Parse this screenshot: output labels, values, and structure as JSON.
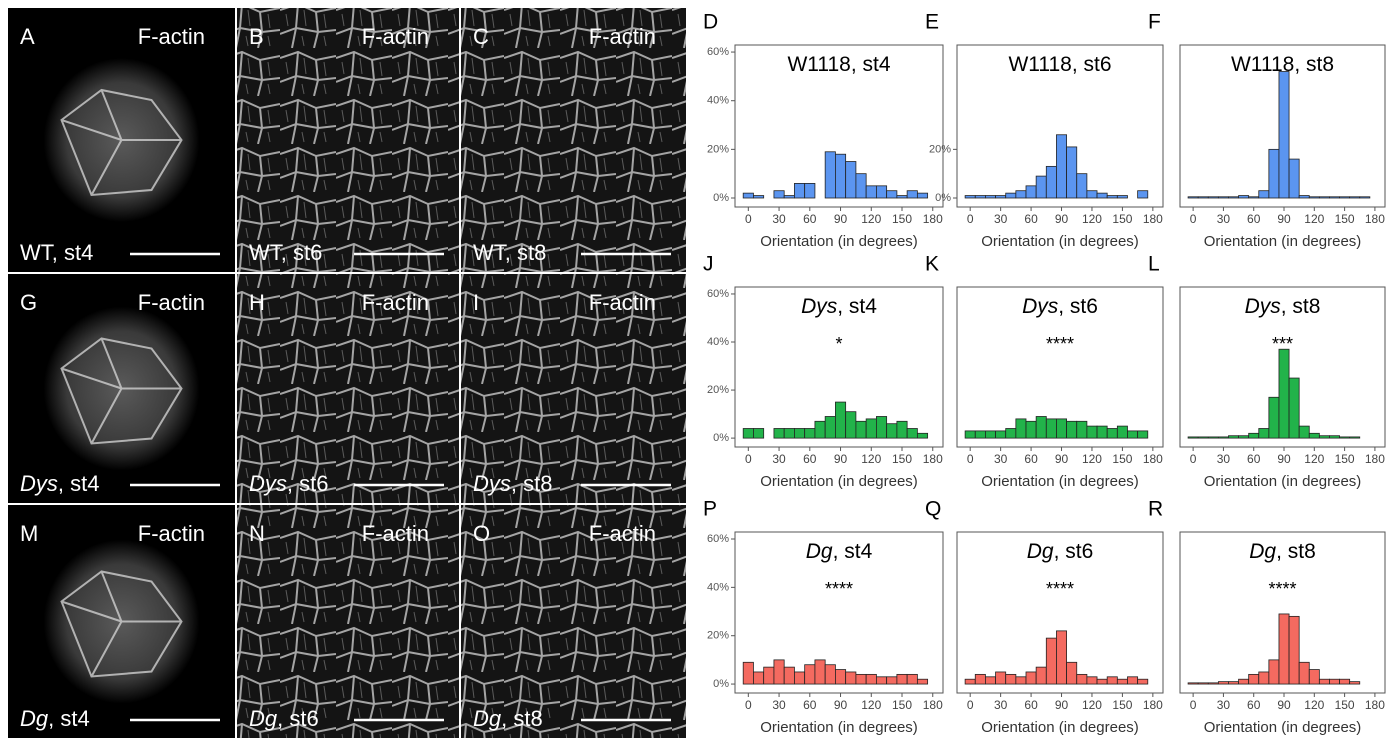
{
  "images": [
    {
      "letter": "A",
      "stain": "F-actin",
      "genotype": "WT",
      "stage": ", st4",
      "italic": false
    },
    {
      "letter": "B",
      "stain": "F-actin",
      "genotype": "WT",
      "stage": ", st6",
      "italic": false
    },
    {
      "letter": "C",
      "stain": "F-actin",
      "genotype": "WT",
      "stage": ", st8",
      "italic": false
    },
    {
      "letter": "G",
      "stain": "F-actin",
      "genotype": "Dys",
      "stage": ", st4",
      "italic": true
    },
    {
      "letter": "H",
      "stain": "F-actin",
      "genotype": "Dys",
      "stage": ", st6",
      "italic": true
    },
    {
      "letter": "I",
      "stain": "F-actin",
      "genotype": "Dys",
      "stage": ", st8",
      "italic": true
    },
    {
      "letter": "M",
      "stain": "F-actin",
      "genotype": "Dg",
      "stage": ", st4",
      "italic": true
    },
    {
      "letter": "N",
      "stain": "F-actin",
      "genotype": "Dg",
      "stage": ", st6",
      "italic": true
    },
    {
      "letter": "O",
      "stain": "F-actin",
      "genotype": "Dg",
      "stage": ", st8",
      "italic": true
    }
  ],
  "chart_data": [
    {
      "type": "histogram",
      "panel": "D",
      "title": {
        "genotype": "W1118",
        "stage": ", st4",
        "italic": false
      },
      "color": "#5b95f0",
      "bins": [
        -5,
        5,
        15,
        25,
        35,
        45,
        55,
        65,
        75,
        85,
        95,
        105,
        115,
        125,
        135,
        145,
        155,
        165,
        175
      ],
      "values": [
        2,
        1,
        0,
        3,
        1,
        6,
        6,
        0,
        19,
        18,
        15,
        10,
        5,
        5,
        3,
        1,
        3,
        2
      ],
      "xlim": [
        -13,
        190
      ],
      "xticks": [
        0,
        30,
        60,
        90,
        120,
        150,
        180
      ],
      "xlabel": "Orientation (in degrees)",
      "ylim": [
        -3.7,
        62.9
      ],
      "yticks": [
        {
          "value": 0,
          "label": "0%"
        },
        {
          "value": 20,
          "label": "20%"
        },
        {
          "value": 40,
          "label": "40%"
        },
        {
          "value": 60,
          "label": "60%"
        }
      ]
    },
    {
      "type": "histogram",
      "panel": "E",
      "title": {
        "genotype": "W1118",
        "stage": ", st6",
        "italic": false
      },
      "color": "#5b95f0",
      "bins": [
        -5,
        5,
        15,
        25,
        35,
        45,
        55,
        65,
        75,
        85,
        95,
        105,
        115,
        125,
        135,
        145,
        155,
        165,
        175
      ],
      "values": [
        1,
        1,
        1,
        1,
        2,
        3,
        5,
        9,
        13,
        26,
        21,
        10,
        3,
        2,
        1,
        1,
        0,
        3
      ],
      "xlim": [
        -13,
        190
      ],
      "xticks": [
        0,
        30,
        60,
        90,
        120,
        150,
        180
      ],
      "xlabel": "Orientation (in degrees)",
      "ylim": [
        -3.7,
        62.9
      ],
      "yticks": [
        {
          "value": 0,
          "label": "0%"
        },
        {
          "value": 20,
          "label": "20%"
        }
      ]
    },
    {
      "type": "histogram",
      "panel": "F",
      "title": {
        "genotype": "W1118",
        "stage": ", st8",
        "italic": false
      },
      "color": "#5b95f0",
      "bins": [
        -5,
        5,
        15,
        25,
        35,
        45,
        55,
        65,
        75,
        85,
        95,
        105,
        115,
        125,
        135,
        145,
        155,
        165,
        175
      ],
      "values": [
        0.5,
        0.5,
        0.5,
        0.5,
        0.5,
        1,
        0.5,
        3,
        20,
        52,
        16,
        1,
        0.5,
        0.5,
        0.5,
        0.5,
        0.5,
        0.5
      ],
      "xlim": [
        -13,
        190
      ],
      "xticks": [
        0,
        30,
        60,
        90,
        120,
        150,
        180
      ],
      "xlabel": "Orientation (in degrees)",
      "ylim": [
        -3.7,
        62.9
      ]
    },
    {
      "type": "histogram",
      "panel": "J",
      "title": {
        "genotype": "Dys",
        "stage": ", st4",
        "italic": true
      },
      "annotation": "*",
      "color": "#22b34a",
      "bins": [
        -5,
        5,
        15,
        25,
        35,
        45,
        55,
        65,
        75,
        85,
        95,
        105,
        115,
        125,
        135,
        145,
        155,
        165,
        175
      ],
      "values": [
        4,
        4,
        0,
        4,
        4,
        4,
        4,
        7,
        9,
        15,
        11,
        7,
        8,
        9,
        6,
        7,
        4,
        2
      ],
      "xlim": [
        -13,
        190
      ],
      "xticks": [
        0,
        30,
        60,
        90,
        120,
        150,
        180
      ],
      "xlabel": "Orientation (in degrees)",
      "ylim": [
        -3.7,
        62.9
      ],
      "yticks": [
        {
          "value": 0,
          "label": "0%"
        },
        {
          "value": 20,
          "label": "20%"
        },
        {
          "value": 40,
          "label": "40%"
        },
        {
          "value": 60,
          "label": "60%"
        }
      ]
    },
    {
      "type": "histogram",
      "panel": "K",
      "title": {
        "genotype": "Dys",
        "stage": ", st6",
        "italic": true
      },
      "annotation": "****",
      "color": "#22b34a",
      "bins": [
        -5,
        5,
        15,
        25,
        35,
        45,
        55,
        65,
        75,
        85,
        95,
        105,
        115,
        125,
        135,
        145,
        155,
        165,
        175
      ],
      "values": [
        3,
        3,
        3,
        3,
        4,
        8,
        7,
        9,
        8,
        8,
        7,
        7,
        5,
        5,
        4,
        5,
        3,
        3
      ],
      "xlim": [
        -13,
        190
      ],
      "xticks": [
        0,
        30,
        60,
        90,
        120,
        150,
        180
      ],
      "xlabel": "Orientation (in degrees)",
      "ylim": [
        -3.7,
        62.9
      ]
    },
    {
      "type": "histogram",
      "panel": "L",
      "title": {
        "genotype": "Dys",
        "stage": ", st8",
        "italic": true
      },
      "annotation": "***",
      "color": "#22b34a",
      "bins": [
        -5,
        5,
        15,
        25,
        35,
        45,
        55,
        65,
        75,
        85,
        95,
        105,
        115,
        125,
        135,
        145,
        155,
        165,
        175
      ],
      "values": [
        0.5,
        0.5,
        0.5,
        0.5,
        1,
        1,
        2,
        4,
        17,
        37,
        25,
        5,
        2,
        1,
        1,
        0.5,
        0.5,
        0
      ],
      "xlim": [
        -13,
        190
      ],
      "xticks": [
        0,
        30,
        60,
        90,
        120,
        150,
        180
      ],
      "xlabel": "Orientation (in degrees)",
      "ylim": [
        -3.7,
        62.9
      ]
    },
    {
      "type": "histogram",
      "panel": "P",
      "title": {
        "genotype": "Dg",
        "stage": ", st4",
        "italic": true
      },
      "annotation": "****",
      "color": "#f46a60",
      "bins": [
        -5,
        5,
        15,
        25,
        35,
        45,
        55,
        65,
        75,
        85,
        95,
        105,
        115,
        125,
        135,
        145,
        155,
        165,
        175
      ],
      "values": [
        9,
        5,
        7,
        10,
        7,
        5,
        8,
        10,
        8,
        6,
        5,
        4,
        4,
        3,
        3,
        4,
        4,
        2
      ],
      "xlim": [
        -13,
        190
      ],
      "xticks": [
        0,
        30,
        60,
        90,
        120,
        150,
        180
      ],
      "xlabel": "Orientation (in degrees)",
      "ylim": [
        -3.7,
        62.9
      ],
      "yticks": [
        {
          "value": 0,
          "label": "0%"
        },
        {
          "value": 20,
          "label": "20%"
        },
        {
          "value": 40,
          "label": "40%"
        },
        {
          "value": 60,
          "label": "60%"
        }
      ]
    },
    {
      "type": "histogram",
      "panel": "Q",
      "title": {
        "genotype": "Dg",
        "stage": ", st6",
        "italic": true
      },
      "annotation": "****",
      "color": "#f46a60",
      "bins": [
        -5,
        5,
        15,
        25,
        35,
        45,
        55,
        65,
        75,
        85,
        95,
        105,
        115,
        125,
        135,
        145,
        155,
        165,
        175
      ],
      "values": [
        2,
        4,
        3,
        5,
        4,
        3,
        5,
        7,
        19,
        22,
        9,
        4,
        3,
        2,
        3,
        2,
        3,
        2
      ],
      "xlim": [
        -13,
        190
      ],
      "xticks": [
        0,
        30,
        60,
        90,
        120,
        150,
        180
      ],
      "xlabel": "Orientation (in degrees)",
      "ylim": [
        -3.7,
        62.9
      ]
    },
    {
      "type": "histogram",
      "panel": "R",
      "title": {
        "genotype": "Dg",
        "stage": ", st8",
        "italic": true
      },
      "annotation": "****",
      "color": "#f46a60",
      "bins": [
        -5,
        5,
        15,
        25,
        35,
        45,
        55,
        65,
        75,
        85,
        95,
        105,
        115,
        125,
        135,
        145,
        155,
        165,
        175
      ],
      "values": [
        0.5,
        0.5,
        0.5,
        1,
        1,
        2,
        4,
        5,
        10,
        29,
        28,
        9,
        6,
        2,
        2,
        2,
        1,
        0
      ],
      "xlim": [
        -13,
        190
      ],
      "xticks": [
        0,
        30,
        60,
        90,
        120,
        150,
        180
      ],
      "xlabel": "Orientation (in degrees)",
      "ylim": [
        -3.7,
        62.9
      ]
    }
  ]
}
